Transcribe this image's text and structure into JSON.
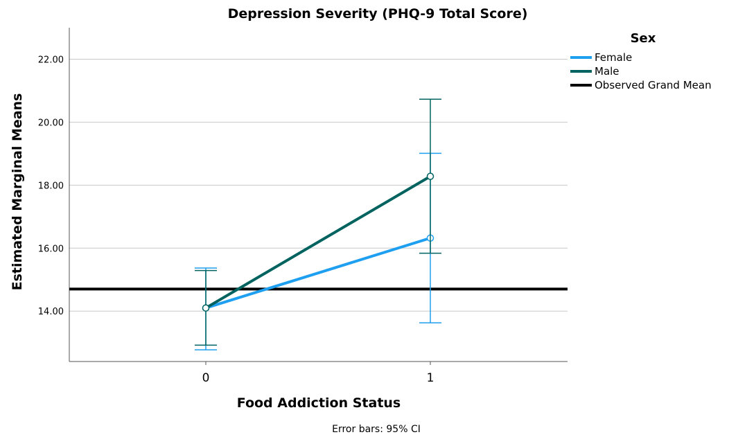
{
  "chart_data": {
    "type": "line",
    "title": "Depression Severity (PHQ-9 Total Score)",
    "xlabel": "Food Addiction Status",
    "ylabel": "Estimated Marginal Means",
    "categories": [
      "0",
      "1"
    ],
    "ylim": [
      12.4,
      23.0
    ],
    "yticks": [
      "14.00",
      "16.00",
      "18.00",
      "20.00",
      "22.00"
    ],
    "grid": true,
    "legend": {
      "title": "Sex",
      "placement": "top-right",
      "entries": [
        "Female",
        "Male",
        "Observed Grand Mean"
      ]
    },
    "series": [
      {
        "name": "Female",
        "color": "#1f9fef",
        "values": [
          14.1,
          16.32
        ],
        "ci_lower": [
          12.77,
          13.63
        ],
        "ci_upper": [
          15.37,
          19.01
        ]
      },
      {
        "name": "Male",
        "color": "#00635f",
        "values": [
          14.1,
          18.28
        ],
        "ci_lower": [
          12.92,
          15.84
        ],
        "ci_upper": [
          15.29,
          20.73
        ]
      }
    ],
    "reference_line": {
      "name": "Observed Grand Mean",
      "value": 14.7,
      "color": "#000000"
    },
    "footnote": "Error bars: 95% CI"
  }
}
